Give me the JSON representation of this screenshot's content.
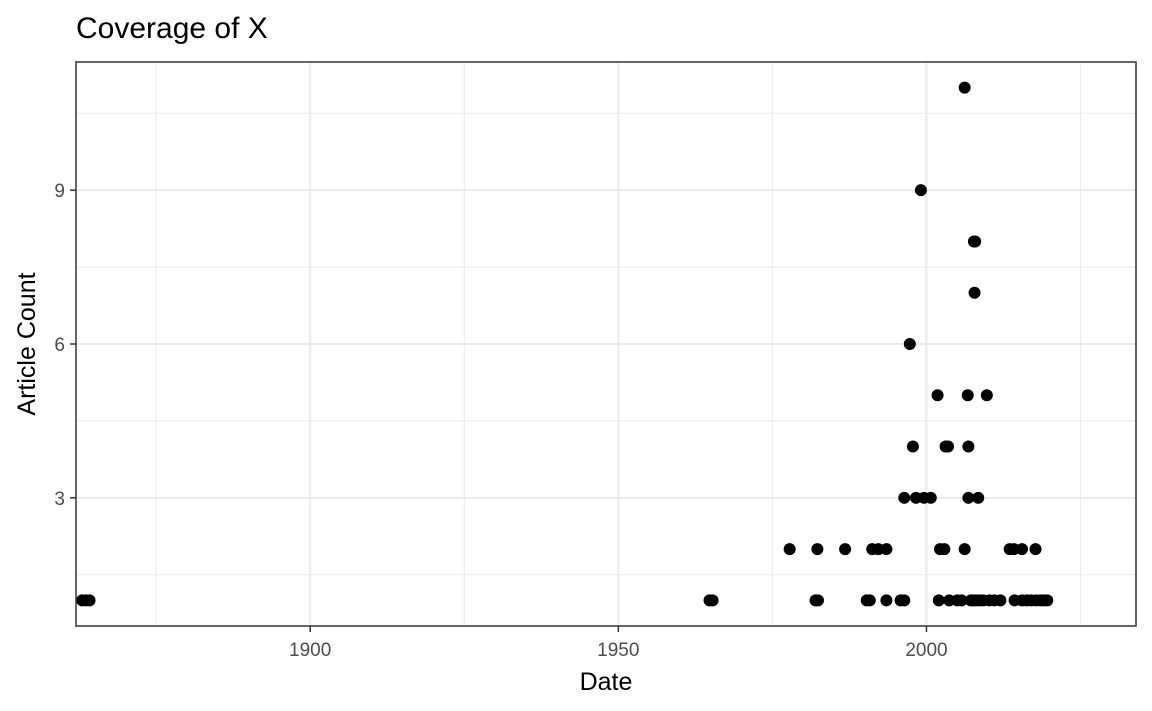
{
  "chart_data": {
    "type": "scatter",
    "title": "Coverage of X",
    "xlabel": "Date",
    "ylabel": "Article Count",
    "xlim": [
      1862,
      2034
    ],
    "ylim": [
      0.5,
      11.5
    ],
    "x_ticks": [
      1900,
      1950,
      2000
    ],
    "x_tick_labels": [
      "1900",
      "1950",
      "2000"
    ],
    "x_minor_ticks": [
      1875,
      1925,
      1975,
      2025
    ],
    "y_ticks": [
      3,
      6,
      9
    ],
    "y_tick_labels": [
      "3",
      "6",
      "9"
    ],
    "y_minor_ticks": [
      1.5,
      4.5,
      7.5,
      10.5
    ],
    "grid": true,
    "legend": "none",
    "point_color": "#000000",
    "series": [
      {
        "points": [
          {
            "x": 1863.0,
            "y": 1
          },
          {
            "x": 1863.6,
            "y": 1
          },
          {
            "x": 1864.2,
            "y": 1
          },
          {
            "x": 1964.8,
            "y": 1
          },
          {
            "x": 1965.3,
            "y": 1
          },
          {
            "x": 1977.8,
            "y": 2
          },
          {
            "x": 1982.0,
            "y": 1
          },
          {
            "x": 1982.4,
            "y": 1
          },
          {
            "x": 1982.3,
            "y": 2
          },
          {
            "x": 1986.8,
            "y": 2
          },
          {
            "x": 1990.3,
            "y": 1
          },
          {
            "x": 1990.8,
            "y": 1
          },
          {
            "x": 1991.2,
            "y": 2
          },
          {
            "x": 1992.2,
            "y": 2
          },
          {
            "x": 1993.5,
            "y": 2
          },
          {
            "x": 1993.5,
            "y": 1
          },
          {
            "x": 1995.8,
            "y": 1
          },
          {
            "x": 1996.4,
            "y": 1
          },
          {
            "x": 1996.4,
            "y": 3
          },
          {
            "x": 1997.3,
            "y": 6
          },
          {
            "x": 1997.8,
            "y": 4
          },
          {
            "x": 1998.3,
            "y": 3
          },
          {
            "x": 1999.1,
            "y": 9
          },
          {
            "x": 1999.6,
            "y": 3
          },
          {
            "x": 2000.7,
            "y": 3
          },
          {
            "x": 2001.8,
            "y": 5
          },
          {
            "x": 2002.0,
            "y": 1
          },
          {
            "x": 2002.2,
            "y": 2
          },
          {
            "x": 2002.9,
            "y": 2
          },
          {
            "x": 2003.1,
            "y": 4
          },
          {
            "x": 2003.5,
            "y": 4
          },
          {
            "x": 2003.7,
            "y": 1
          },
          {
            "x": 2005.0,
            "y": 1
          },
          {
            "x": 2005.7,
            "y": 1
          },
          {
            "x": 2006.2,
            "y": 11
          },
          {
            "x": 2006.2,
            "y": 2
          },
          {
            "x": 2006.7,
            "y": 5
          },
          {
            "x": 2006.8,
            "y": 4
          },
          {
            "x": 2006.8,
            "y": 3
          },
          {
            "x": 2007.2,
            "y": 1
          },
          {
            "x": 2007.5,
            "y": 1
          },
          {
            "x": 2007.7,
            "y": 8
          },
          {
            "x": 2007.9,
            "y": 8
          },
          {
            "x": 2007.8,
            "y": 7
          },
          {
            "x": 2008.0,
            "y": 1
          },
          {
            "x": 2008.4,
            "y": 3
          },
          {
            "x": 2008.6,
            "y": 1
          },
          {
            "x": 2009.2,
            "y": 1
          },
          {
            "x": 2009.8,
            "y": 5
          },
          {
            "x": 2010.2,
            "y": 1
          },
          {
            "x": 2011.0,
            "y": 1
          },
          {
            "x": 2012.0,
            "y": 1
          },
          {
            "x": 2013.5,
            "y": 2
          },
          {
            "x": 2014.2,
            "y": 2
          },
          {
            "x": 2015.5,
            "y": 2
          },
          {
            "x": 2014.3,
            "y": 1
          },
          {
            "x": 2015.5,
            "y": 1
          },
          {
            "x": 2016.3,
            "y": 1
          },
          {
            "x": 2017.0,
            "y": 1
          },
          {
            "x": 2017.7,
            "y": 2
          },
          {
            "x": 2017.8,
            "y": 1
          },
          {
            "x": 2018.5,
            "y": 1
          },
          {
            "x": 2019.1,
            "y": 1
          },
          {
            "x": 2019.6,
            "y": 1
          }
        ]
      }
    ]
  }
}
